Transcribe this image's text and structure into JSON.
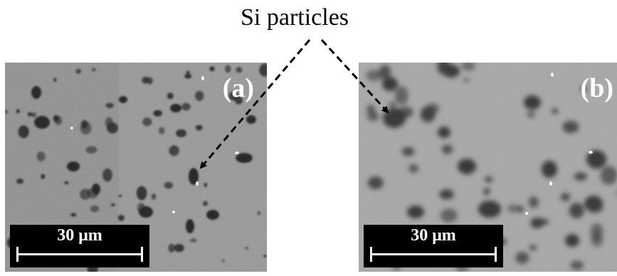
{
  "annotation": {
    "text": "Si particles"
  },
  "panels": [
    {
      "label": "(a)",
      "scale_bar": "30 μm"
    },
    {
      "label": "(b)",
      "scale_bar": "30 μm"
    }
  ]
}
